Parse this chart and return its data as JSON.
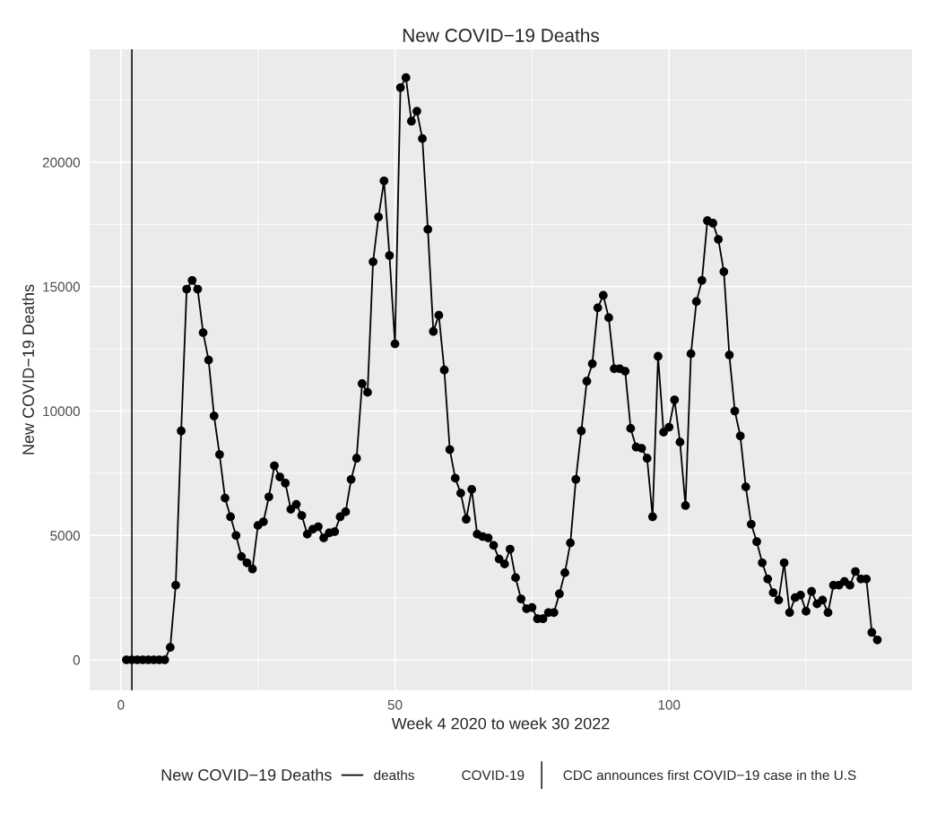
{
  "chart_data": {
    "type": "line",
    "title": "New COVID−19 Deaths",
    "xlabel": "Week 4 2020 to week 30 2022",
    "ylabel": "New COVID−19 Deaths",
    "legend_title": "New COVID−19 Deaths",
    "x": [
      1,
      2,
      3,
      4,
      5,
      6,
      7,
      8,
      9,
      10,
      11,
      12,
      13,
      14,
      15,
      16,
      17,
      18,
      19,
      20,
      21,
      22,
      23,
      24,
      25,
      26,
      27,
      28,
      29,
      30,
      31,
      32,
      33,
      34,
      35,
      36,
      37,
      38,
      39,
      40,
      41,
      42,
      43,
      44,
      45,
      46,
      47,
      48,
      49,
      50,
      51,
      52,
      53,
      54,
      55,
      56,
      57,
      58,
      59,
      60,
      61,
      62,
      63,
      64,
      65,
      66,
      67,
      68,
      69,
      70,
      71,
      72,
      73,
      74,
      75,
      76,
      77,
      78,
      79,
      80,
      81,
      82,
      83,
      84,
      85,
      86,
      87,
      88,
      89,
      90,
      91,
      92,
      93,
      94,
      95,
      96,
      97,
      98,
      99,
      100,
      101,
      102,
      103,
      104,
      105,
      106,
      107,
      108,
      109,
      110,
      111,
      112,
      113,
      114,
      115,
      116,
      117,
      118,
      119,
      120,
      121,
      122,
      123,
      124,
      125,
      126,
      127,
      128,
      129,
      130,
      131,
      132,
      133,
      134,
      135,
      136,
      137,
      138
    ],
    "series": [
      {
        "name": "deaths",
        "color": "#000000",
        "values": [
          0,
          0,
          0,
          0,
          0,
          0,
          0,
          0,
          500,
          3000,
          9200,
          14900,
          15250,
          14900,
          13150,
          12050,
          9800,
          8250,
          6500,
          5750,
          5000,
          4150,
          3900,
          3650,
          5400,
          5550,
          6550,
          7800,
          7350,
          7100,
          6050,
          6250,
          5800,
          5050,
          5250,
          5350,
          4900,
          5100,
          5150,
          5750,
          5950,
          7250,
          8100,
          11100,
          10750,
          16000,
          17800,
          19250,
          16250,
          12700,
          23000,
          23400,
          21650,
          22050,
          20950,
          17300,
          13200,
          13850,
          11650,
          8450,
          7300,
          6700,
          5650,
          6850,
          5050,
          4950,
          4900,
          4600,
          4050,
          3850,
          4450,
          3300,
          2450,
          2050,
          2100,
          1650,
          1650,
          1900,
          1900,
          2650,
          3500,
          4700,
          7250,
          9200,
          11200,
          11900,
          14150,
          14650,
          13750,
          11700,
          11700,
          11600,
          9300,
          8550,
          8500,
          8100,
          5750,
          12200,
          9150,
          9350,
          10450,
          8750,
          6200,
          12300,
          14400,
          15250,
          17650,
          17550,
          16900,
          15600,
          12250,
          10000,
          9000,
          6950,
          5450,
          4750,
          3900,
          3250,
          2700,
          2400,
          3900,
          1900,
          2500,
          2600,
          1950,
          2750,
          2250,
          2400,
          1900,
          3000,
          3000,
          3150,
          3000,
          3550,
          3250,
          3250,
          1100,
          800
        ]
      }
    ],
    "ref_lines": [
      {
        "axis": "x",
        "value": 2,
        "label": "CDC announces first COVID−19 case in the U.S",
        "color": "#000000"
      }
    ],
    "annotations": [
      "COVID-19"
    ],
    "xlim": [
      -5.7,
      144.3
    ],
    "ylim": [
      -1225,
      24540
    ],
    "xticks": [
      0,
      50,
      100
    ],
    "yticks": [
      0,
      5000,
      10000,
      15000,
      20000
    ],
    "grid": true,
    "legend": "bottom",
    "marker": "circle",
    "line_style": "solid"
  }
}
